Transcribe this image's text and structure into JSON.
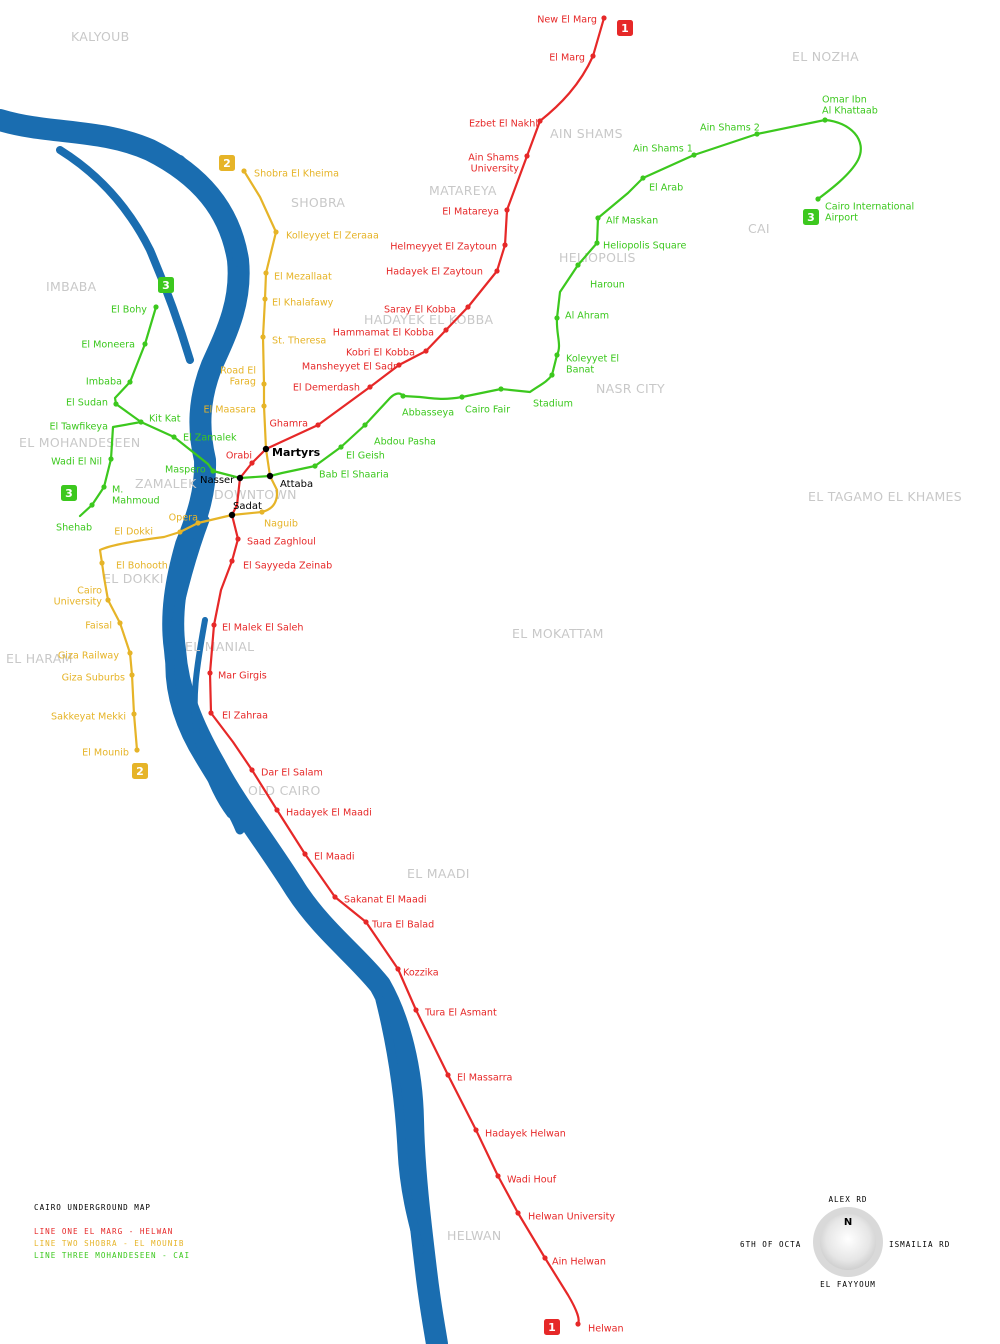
{
  "legend": {
    "title": "Cairo Underground Map",
    "lines": [
      {
        "label": "Line One El Marg - Helwan",
        "color": "#e62828"
      },
      {
        "label": "Line Two Shobra - El Mounib",
        "color": "#e6b428"
      },
      {
        "label": "Line Three Mohandeseen - CAI",
        "color": "#3cc81e"
      }
    ]
  },
  "compass": {
    "north": "N",
    "top": "ALEX RD",
    "left": "6TH OF OCTA",
    "right": "ISMAILIA RD",
    "bottom": "EL FAYYOUM"
  },
  "districts": [
    "KALYOUB",
    "EL NOZHA",
    "AIN SHAMS",
    "MATAREYA",
    "SHOBRA",
    "CAI",
    "HELIOPOLIS",
    "IMBABA",
    "HADAYEK EL KOBBA",
    "NASR CITY",
    "EL MOHANDESEEN",
    "ZAMALEK",
    "DOWNTOWN",
    "EL TAGAMO EL KHAMES",
    "EL DOKKI",
    "EL MOKATTAM",
    "EL HARAM",
    "EL MANIAL",
    "OLD CAIRO",
    "EL MAADI",
    "HELWAN"
  ],
  "colors": {
    "line1": "#e62828",
    "line2": "#e6b428",
    "line3": "#3cc81e",
    "river": "#1a6db0"
  },
  "line1": {
    "badge": "1",
    "stations": [
      "New El Marg",
      "El Marg",
      "Ezbet El Nakhl",
      "Ain Shams University",
      "El Matareya",
      "Helmeyyet El Zaytoun",
      "Hadayek El Zaytoun",
      "Saray El Kobba",
      "Hammamat El Kobba",
      "Kobri El Kobba",
      "Mansheyyet El Sadr",
      "El Demerdash",
      "Ghamra",
      "Orabi",
      "Saad Zaghloul",
      "El Sayyeda Zeinab",
      "El Malek El Saleh",
      "Mar Girgis",
      "El Zahraa",
      "Dar El Salam",
      "Hadayek El Maadi",
      "El Maadi",
      "Sakanat El Maadi",
      "Tura El Balad",
      "Kozzika",
      "Tura El Asmant",
      "El Massarra",
      "Hadayek Helwan",
      "Wadi Houf",
      "Helwan University",
      "Ain Helwan",
      "Helwan"
    ]
  },
  "line2": {
    "badge": "2",
    "stations": [
      "Shobra El Kheima",
      "Kolleyyet El Zeraaa",
      "El Mezallaat",
      "El Khalafawy",
      "St. Theresa",
      "Road El Farag",
      "El Maasara",
      "Naguib",
      "Opera",
      "El Dokki",
      "El Bohooth",
      "Cairo University",
      "Faisal",
      "Giza Railway",
      "Giza Suburbs",
      "Sakkeyat Mekki",
      "El Mounib"
    ]
  },
  "line3": {
    "badge": "3",
    "stations": [
      "Omar Ibn Al Khattaab",
      "Ain Shams 2",
      "Ain Shams 1",
      "El Arab",
      "Alf Maskan",
      "Heliopolis Square",
      "Haroun",
      "Al Ahram",
      "Koleyyet El Banat",
      "Stadium",
      "Cairo Fair",
      "Abbasseya",
      "Abdou Pasha",
      "El Geish",
      "Bab El Shaaria",
      "Maspero",
      "El Zamalek",
      "Kit Kat",
      "El Tawfikeya",
      "Wadi El Nil",
      "M. Mahmoud",
      "Shehab",
      "El Sudan",
      "Imbaba",
      "El Moneera",
      "El Bohy",
      "Cairo International Airport"
    ]
  },
  "interchanges": [
    "Martyrs",
    "Attaba",
    "Nasser",
    "Sadat"
  ]
}
